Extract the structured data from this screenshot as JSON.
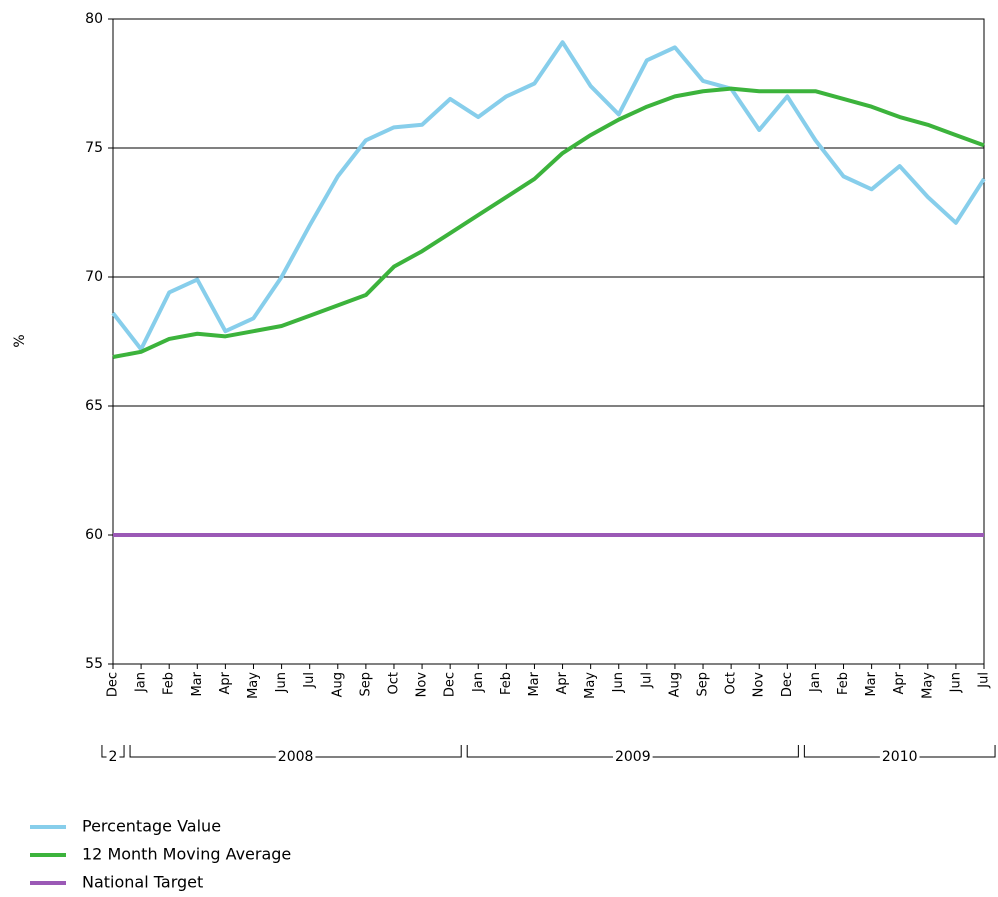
{
  "chart_data": {
    "type": "line",
    "ylabel": "%",
    "categories": [
      "Dec",
      "Jan",
      "Feb",
      "Mar",
      "Apr",
      "May",
      "Jun",
      "Jul",
      "Aug",
      "Sep",
      "Oct",
      "Nov",
      "Dec",
      "Jan",
      "Feb",
      "Mar",
      "Apr",
      "May",
      "Jun",
      "Jul",
      "Aug",
      "Sep",
      "Oct",
      "Nov",
      "Dec",
      "Jan",
      "Feb",
      "Mar",
      "Apr",
      "May",
      "Jun",
      "Jul"
    ],
    "groups": [
      {
        "label": "2",
        "count": 1
      },
      {
        "label": "2008",
        "count": 12
      },
      {
        "label": "2009",
        "count": 12
      },
      {
        "label": "2010",
        "count": 7
      }
    ],
    "series": [
      {
        "name": "Percentage Value",
        "color": "#87ceeb",
        "values": [
          68.6,
          67.2,
          69.4,
          69.9,
          67.9,
          68.4,
          70.0,
          72.0,
          73.9,
          75.3,
          75.8,
          75.9,
          76.9,
          76.2,
          77.0,
          77.5,
          79.1,
          77.4,
          76.3,
          78.4,
          78.9,
          77.6,
          77.3,
          75.7,
          77.0,
          75.3,
          73.9,
          73.4,
          74.3,
          73.1,
          72.1,
          73.8
        ]
      },
      {
        "name": "12 Month Moving Average",
        "color": "#3cb33c",
        "values": [
          66.9,
          67.1,
          67.6,
          67.8,
          67.7,
          67.9,
          68.1,
          68.5,
          68.9,
          69.3,
          70.4,
          71.0,
          71.7,
          72.4,
          73.1,
          73.8,
          74.8,
          75.5,
          76.1,
          76.6,
          77.0,
          77.2,
          77.3,
          77.2,
          77.2,
          77.2,
          76.9,
          76.6,
          76.2,
          75.9,
          75.5,
          75.1
        ]
      },
      {
        "name": "National Target",
        "color": "#9b59b6",
        "values": [
          60,
          60,
          60,
          60,
          60,
          60,
          60,
          60,
          60,
          60,
          60,
          60,
          60,
          60,
          60,
          60,
          60,
          60,
          60,
          60,
          60,
          60,
          60,
          60,
          60,
          60,
          60,
          60,
          60,
          60,
          60,
          60
        ]
      }
    ],
    "ylim": [
      55,
      80
    ],
    "yticks": [
      55,
      60,
      65,
      70,
      75,
      80
    ],
    "grid": true
  }
}
